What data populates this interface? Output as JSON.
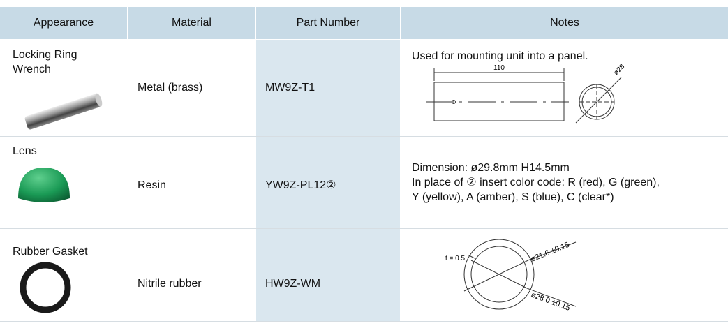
{
  "table": {
    "columns": [
      "Appearance",
      "Material",
      "Part Number",
      "Notes"
    ],
    "rows": [
      {
        "appearance": "Locking Ring Wrench",
        "material": "Metal (brass)",
        "part_number": "MW9Z-T1",
        "notes": [
          "Used for mounting unit into a panel."
        ],
        "drawing_labels": [
          "110",
          "ø28"
        ]
      },
      {
        "appearance": "Lens",
        "material": "Resin",
        "part_number": "YW9Z-PL12②",
        "notes": [
          "Dimension: ø29.8mm  H14.5mm",
          "In place of ② insert color code: R (red), G (green),",
          "Y (yellow),  A (amber), S (blue), C (clear*)"
        ]
      },
      {
        "appearance": "Rubber Gasket",
        "material": "Nitrile rubber",
        "part_number": "HW9Z-WM",
        "drawing_labels": [
          "t = 0.5",
          "ø21.6 ±0.15",
          "ø28.0 ±0.15"
        ]
      }
    ]
  }
}
